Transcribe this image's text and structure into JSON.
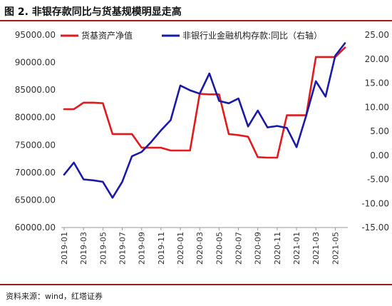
{
  "figure": {
    "title": "图 2. 非银存款同比与货基规模明显走高",
    "source": "资料来源：wind，红塔证券"
  },
  "chart_data": {
    "type": "line",
    "x": [
      "2019-01",
      "2019-02",
      "2019-03",
      "2019-04",
      "2019-05",
      "2019-06",
      "2019-07",
      "2019-08",
      "2019-09",
      "2019-10",
      "2019-11",
      "2019-12",
      "2020-01",
      "2020-02",
      "2020-03",
      "2020-04",
      "2020-05",
      "2020-06",
      "2020-07",
      "2020-08",
      "2020-09",
      "2020-10",
      "2020-11",
      "2020-12",
      "2021-01",
      "2021-02",
      "2021-03",
      "2021-04",
      "2021-05",
      "2021-06"
    ],
    "x_tick_labels": [
      "2019-01",
      "2019-03",
      "2019-05",
      "2019-07",
      "2019-09",
      "2019-11",
      "2020-01",
      "2020-03",
      "2020-05",
      "2020-07",
      "2020-09",
      "2020-11",
      "2021-01",
      "2021-03",
      "2021-05"
    ],
    "series": [
      {
        "name": "货基资产净值",
        "axis": "left",
        "color": "#e31a1c",
        "values": [
          81500,
          81500,
          82700,
          82700,
          82600,
          77000,
          77000,
          77000,
          74500,
          74500,
          74500,
          74000,
          74000,
          74000,
          84300,
          84200,
          84200,
          77000,
          76800,
          76500,
          72800,
          72700,
          72700,
          80400,
          80400,
          80400,
          91000,
          91000,
          91000,
          92700
        ]
      },
      {
        "name": "非银行业金融机构存款:同比（右轴）",
        "axis": "right",
        "color": "#1a1aa8",
        "values": [
          -4.0,
          -1.5,
          -5.0,
          -5.2,
          -5.5,
          -8.8,
          -5.5,
          -0.2,
          0.7,
          2.8,
          5.2,
          7.3,
          14.5,
          13.5,
          12.8,
          17.0,
          11.3,
          10.8,
          11.8,
          6.0,
          9.3,
          5.8,
          6.1,
          5.7,
          1.7,
          8.3,
          15.4,
          12.2,
          20.7,
          23.3
        ]
      }
    ],
    "y_left": {
      "min": 60000,
      "max": 95000,
      "step": 5000,
      "tick_labels": [
        "60000.00",
        "65000.00",
        "70000.00",
        "75000.00",
        "80000.00",
        "85000.00",
        "90000.00",
        "95000.00"
      ]
    },
    "y_right": {
      "min": -15,
      "max": 25,
      "step": 5,
      "tick_labels": [
        "-15.00",
        "-10.00",
        "-5.00",
        "0.00",
        "5.00",
        "10.00",
        "15.00",
        "20.00",
        "25.00"
      ]
    },
    "grid": false,
    "legend_position": "top"
  }
}
